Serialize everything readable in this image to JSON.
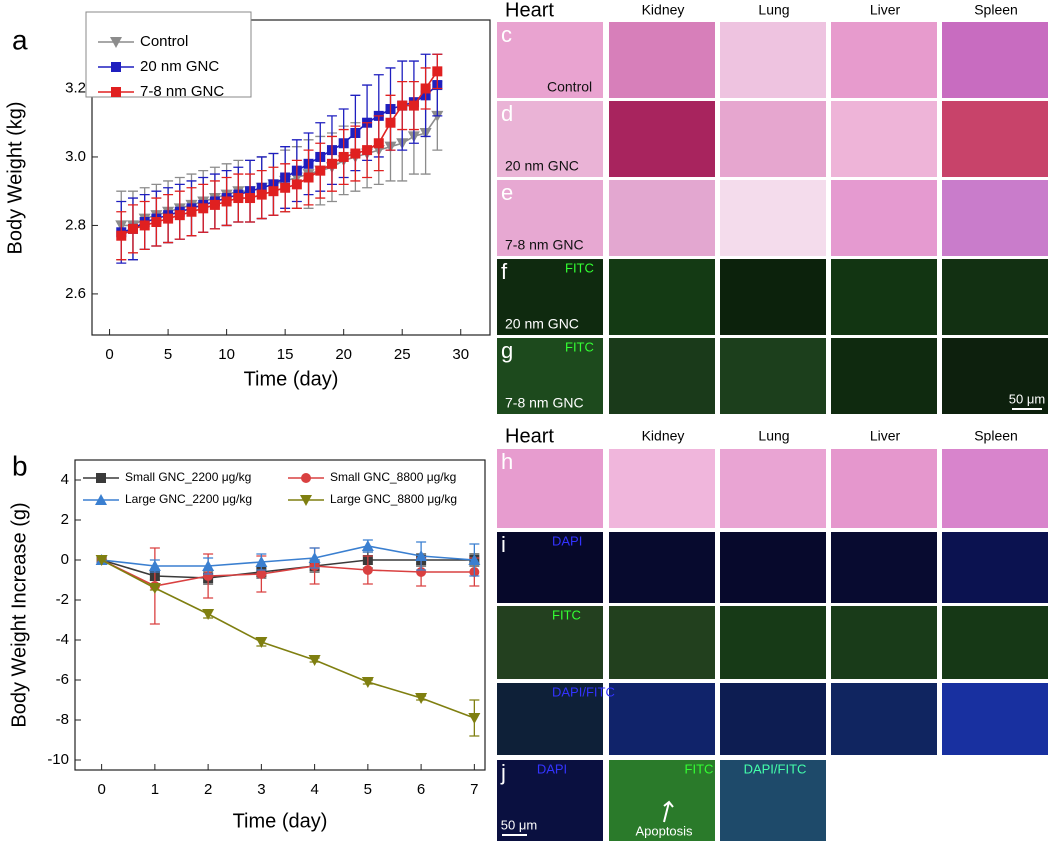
{
  "chart_data": [
    {
      "type": "line",
      "panel_label": "a",
      "y_label": "Body Weight (kg)",
      "x_label": "Time (day)",
      "x": [
        1,
        2,
        3,
        4,
        5,
        6,
        7,
        8,
        9,
        10,
        11,
        12,
        13,
        14,
        15,
        16,
        17,
        18,
        19,
        20,
        21,
        22,
        23,
        24,
        25,
        26,
        27,
        28
      ],
      "series": [
        {
          "name": "Control",
          "color": "#8c8c8c",
          "marker": "triangle-down",
          "values": [
            2.8,
            2.8,
            2.82,
            2.83,
            2.84,
            2.85,
            2.86,
            2.87,
            2.88,
            2.89,
            2.9,
            2.9,
            2.91,
            2.92,
            2.93,
            2.94,
            2.95,
            2.96,
            2.97,
            2.99,
            3.0,
            3.01,
            3.02,
            3.03,
            3.04,
            3.06,
            3.07,
            3.12
          ],
          "errors": [
            0.1,
            0.1,
            0.09,
            0.09,
            0.09,
            0.09,
            0.09,
            0.09,
            0.09,
            0.09,
            0.09,
            0.09,
            0.09,
            0.09,
            0.09,
            0.09,
            0.1,
            0.1,
            0.1,
            0.1,
            0.1,
            0.1,
            0.1,
            0.1,
            0.11,
            0.11,
            0.12,
            0.1
          ]
        },
        {
          "name": "20 nm GNC",
          "color": "#1f1fbf",
          "marker": "square",
          "values": [
            2.78,
            2.79,
            2.81,
            2.82,
            2.83,
            2.84,
            2.85,
            2.86,
            2.87,
            2.88,
            2.89,
            2.9,
            2.91,
            2.92,
            2.94,
            2.96,
            2.98,
            3.0,
            3.02,
            3.04,
            3.07,
            3.1,
            3.12,
            3.14,
            3.15,
            3.16,
            3.18,
            3.21
          ],
          "errors": [
            0.09,
            0.09,
            0.08,
            0.08,
            0.08,
            0.08,
            0.08,
            0.08,
            0.08,
            0.08,
            0.08,
            0.09,
            0.09,
            0.09,
            0.09,
            0.09,
            0.09,
            0.1,
            0.1,
            0.1,
            0.11,
            0.11,
            0.12,
            0.12,
            0.13,
            0.12,
            0.12,
            0.09
          ]
        },
        {
          "name": "7-8 nm GNC",
          "color": "#e02020",
          "marker": "square",
          "values": [
            2.77,
            2.79,
            2.8,
            2.81,
            2.82,
            2.83,
            2.84,
            2.85,
            2.86,
            2.87,
            2.88,
            2.88,
            2.89,
            2.9,
            2.91,
            2.92,
            2.94,
            2.96,
            2.98,
            3.0,
            3.01,
            3.02,
            3.04,
            3.1,
            3.15,
            3.15,
            3.2,
            3.25
          ],
          "errors": [
            0.07,
            0.07,
            0.07,
            0.07,
            0.07,
            0.07,
            0.07,
            0.07,
            0.07,
            0.07,
            0.07,
            0.07,
            0.07,
            0.07,
            0.07,
            0.07,
            0.08,
            0.08,
            0.08,
            0.08,
            0.08,
            0.08,
            0.08,
            0.08,
            0.07,
            0.07,
            0.06,
            0.05
          ]
        }
      ],
      "xlim": [
        -1.5,
        32.5
      ],
      "xticks": [
        0,
        5,
        10,
        15,
        20,
        25,
        30
      ],
      "ylim": [
        2.48,
        3.4
      ],
      "yticks": [
        2.6,
        2.8,
        {
          "value": 3,
          "label": "3.0"
        },
        3.2
      ],
      "legend": "upper left",
      "legend_ncol": 1
    },
    {
      "type": "line",
      "panel_label": "b",
      "y_label": "Body Weight Increase (g)",
      "x_label": "Time (day)",
      "x": [
        0,
        1,
        2,
        3,
        4,
        5,
        6,
        7
      ],
      "series": [
        {
          "name": "Small GNC_2200 μg/kg",
          "color": "#3a3a3a",
          "marker": "square",
          "values": [
            0,
            -0.8,
            -0.9,
            -0.6,
            -0.3,
            0,
            0,
            0
          ],
          "errors": [
            0,
            0.2,
            0.3,
            0.3,
            0.3,
            0.4,
            0.3,
            0.3
          ]
        },
        {
          "name": "Small GNC_8800 μg/kg",
          "color": "#d94040",
          "marker": "circle",
          "values": [
            0,
            -1.3,
            -0.8,
            -0.7,
            -0.3,
            -0.5,
            -0.6,
            -0.6
          ],
          "errors": [
            0,
            1.9,
            1.1,
            0.9,
            0.9,
            0.7,
            0.7,
            0.7
          ]
        },
        {
          "name": "Large GNC_2200 μg/kg",
          "color": "#3a7fd0",
          "marker": "triangle-up",
          "values": [
            0,
            -0.3,
            -0.3,
            -0.1,
            0.1,
            0.7,
            0.2,
            0
          ],
          "errors": [
            0,
            0.3,
            0.4,
            0.4,
            0.5,
            0.3,
            0.7,
            0.8
          ]
        },
        {
          "name": "Large GNC_8800 μg/kg",
          "color": "#7f7f10",
          "marker": "triangle-down",
          "values": [
            0,
            -1.4,
            -2.7,
            -4.1,
            -5.0,
            -6.1,
            -6.9,
            -7.9
          ],
          "errors": [
            0,
            0.1,
            0.2,
            0.2,
            0.1,
            0.1,
            0.1,
            0.9
          ]
        }
      ],
      "xlim": [
        -0.5,
        7.2
      ],
      "xticks": [
        0,
        1,
        2,
        3,
        4,
        5,
        6,
        7
      ],
      "ylim": [
        -10.5,
        5
      ],
      "yticks": [
        -10,
        -8,
        -6,
        -4,
        -2,
        0,
        2,
        4
      ],
      "legend": "upper center",
      "legend_ncol": 2
    }
  ],
  "histology": {
    "upper": {
      "columns": [
        "Heart",
        "Kidney",
        "Lung",
        "Liver",
        "Spleen"
      ],
      "rows": [
        {
          "label": "c",
          "caption": "Control"
        },
        {
          "label": "d",
          "caption": "20 nm GNC"
        },
        {
          "label": "e",
          "caption": "7-8 nm GNC"
        },
        {
          "label": "f",
          "stain": "FITC",
          "caption": "20 nm GNC"
        },
        {
          "label": "g",
          "stain": "FITC",
          "caption": "7-8 nm GNC"
        }
      ],
      "scale_bar": "50 μm"
    },
    "lower": {
      "columns": [
        "Heart",
        "Kidney",
        "Lung",
        "Liver",
        "Spleen"
      ],
      "rows": [
        {
          "label": "h"
        },
        {
          "label": "i",
          "stain": "DAPI"
        },
        {
          "stain": "FITC"
        },
        {
          "stain": "DAPI/FITC"
        }
      ],
      "panel_j": {
        "label": "j",
        "stains": [
          "DAPI",
          "FITC",
          "DAPI/FITC"
        ],
        "annotation": "Apoptosis",
        "scale_bar": "50 μm"
      }
    }
  }
}
